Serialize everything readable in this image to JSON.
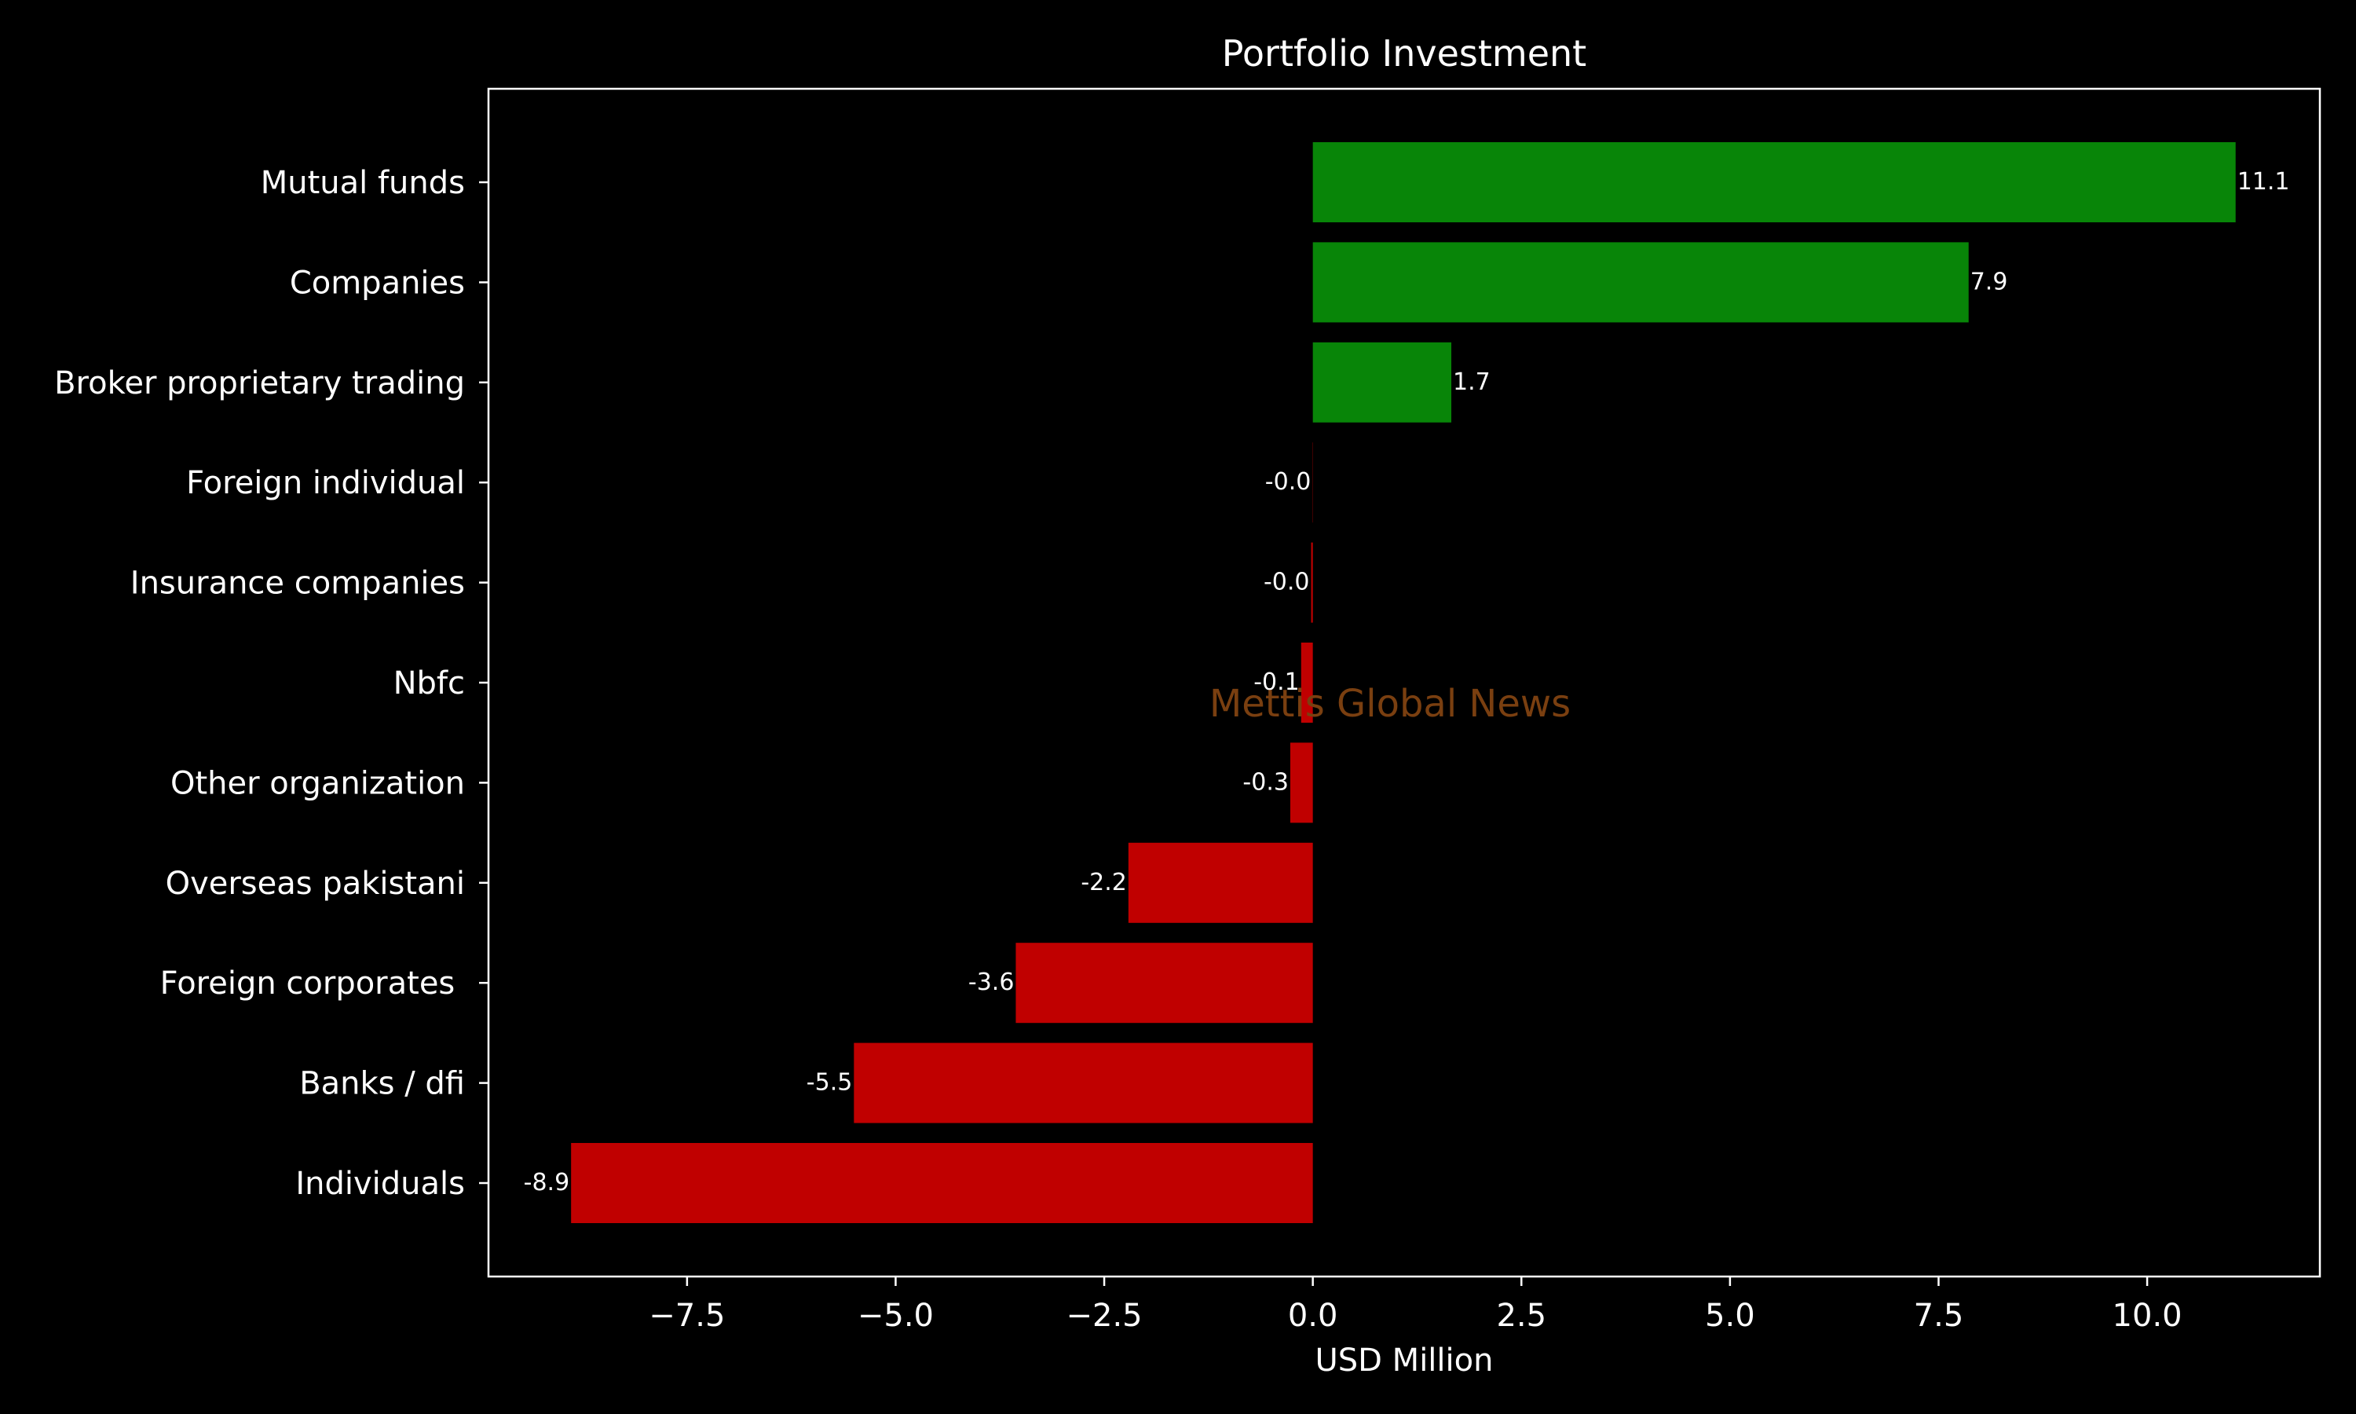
{
  "chart_data": {
    "type": "bar",
    "orientation": "horizontal",
    "title": "Portfolio Investment",
    "xlabel": "USD Million",
    "ylabel": "",
    "xlim": [
      -9.88,
      12.07
    ],
    "grid": false,
    "legend": "none",
    "watermark": "Mettis Global News",
    "categories": [
      "Mutual funds",
      "Companies",
      "Broker proprietary trading",
      "Foreign individual",
      "Insurance companies",
      "Nbfc",
      "Other organization",
      "Overseas pakistani",
      "Foreign corporates ",
      "Banks / dfi",
      "Individuals"
    ],
    "values": [
      11.06,
      7.86,
      1.66,
      -0.003,
      -0.02,
      -0.14,
      -0.27,
      -2.21,
      -3.56,
      -5.5,
      -8.89
    ],
    "data_labels": [
      "11.1",
      "7.9",
      "1.7",
      "-0.0",
      "-0.0",
      "-0.1",
      "-0.3",
      "-2.2",
      "-3.6",
      "-5.5",
      "-8.9"
    ],
    "x_ticks": [
      -7.5,
      -5.0,
      -2.5,
      0.0,
      2.5,
      5.0,
      7.5,
      10.0
    ],
    "x_tick_labels": [
      "−7.5",
      "−5.0",
      "−2.5",
      "0.0",
      "2.5",
      "5.0",
      "7.5",
      "10.0"
    ],
    "colors": {
      "background": "#000000",
      "positive": "#088508",
      "negative": "#c00000",
      "axis": "#ffffff",
      "text": "#ffffff",
      "watermark": "#7a3f10"
    }
  }
}
